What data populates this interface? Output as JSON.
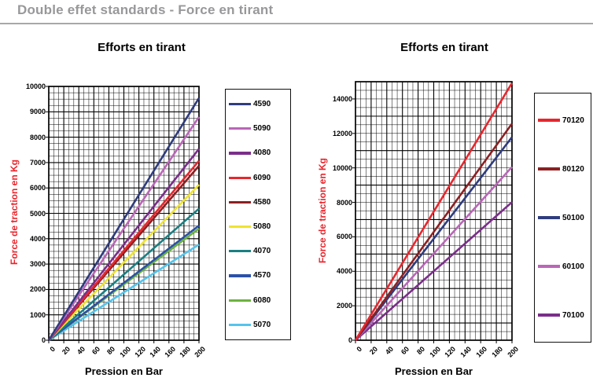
{
  "page": {
    "title": "Double effet standards - Force en tirant"
  },
  "chart_data": [
    {
      "type": "line",
      "title": "Efforts en tirant",
      "xlabel": "Pression en Bar",
      "ylabel": "Force de traction en Kg",
      "xlim": [
        0,
        200
      ],
      "ylim": [
        0,
        10000
      ],
      "x_ticks": [
        0,
        20,
        40,
        60,
        80,
        100,
        120,
        140,
        160,
        180,
        200
      ],
      "y_ticks": [
        0,
        1000,
        2000,
        3000,
        4000,
        5000,
        6000,
        7000,
        8000,
        9000,
        10000
      ],
      "x_minor_step": 6.667,
      "y_minor_step": 250,
      "grid": true,
      "legend_position": "right",
      "x": [
        0,
        200
      ],
      "series": [
        {
          "name": "4590",
          "color": "#2F3C7E",
          "values": [
            0,
            9543
          ]
        },
        {
          "name": "5090",
          "color": "#BA66B8",
          "values": [
            0,
            8796
          ]
        },
        {
          "name": "4080",
          "color": "#7B2E8A",
          "values": [
            0,
            7540
          ]
        },
        {
          "name": "6090",
          "color": "#E8262D",
          "values": [
            0,
            7069
          ]
        },
        {
          "name": "4580",
          "color": "#8C2022",
          "values": [
            0,
            6872
          ]
        },
        {
          "name": "5080",
          "color": "#EFE32F",
          "values": [
            0,
            6126
          ]
        },
        {
          "name": "4070",
          "color": "#1A7F82",
          "values": [
            0,
            5184
          ]
        },
        {
          "name": "4570",
          "color": "#2B51A8",
          "values": [
            0,
            4516
          ]
        },
        {
          "name": "6080",
          "color": "#6CB23F",
          "values": [
            0,
            4398
          ]
        },
        {
          "name": "5070",
          "color": "#53C4EC",
          "values": [
            0,
            3770
          ]
        }
      ]
    },
    {
      "type": "line",
      "title": "Efforts en tirant",
      "xlabel": "Pression en Bar",
      "ylabel": "Force de traction en Kg",
      "xlim": [
        0,
        200
      ],
      "ylim": [
        0,
        15000
      ],
      "x_ticks": [
        0,
        20,
        40,
        60,
        80,
        100,
        120,
        140,
        160,
        180,
        200
      ],
      "y_ticks": [
        0,
        2000,
        4000,
        6000,
        8000,
        10000,
        12000,
        14000
      ],
      "x_minor_step": 6.667,
      "y_minor_step": 500,
      "grid": true,
      "legend_position": "right",
      "x": [
        0,
        200
      ],
      "series": [
        {
          "name": "70120",
          "color": "#E8262D",
          "values": [
            0,
            14923
          ]
        },
        {
          "name": "80120",
          "color": "#8C2022",
          "values": [
            0,
            12566
          ]
        },
        {
          "name": "50100",
          "color": "#2F3C7E",
          "values": [
            0,
            11781
          ]
        },
        {
          "name": "60100",
          "color": "#BA66B8",
          "values": [
            0,
            10053
          ]
        },
        {
          "name": "70100",
          "color": "#7B2E8A",
          "values": [
            0,
            8011
          ]
        }
      ]
    }
  ]
}
